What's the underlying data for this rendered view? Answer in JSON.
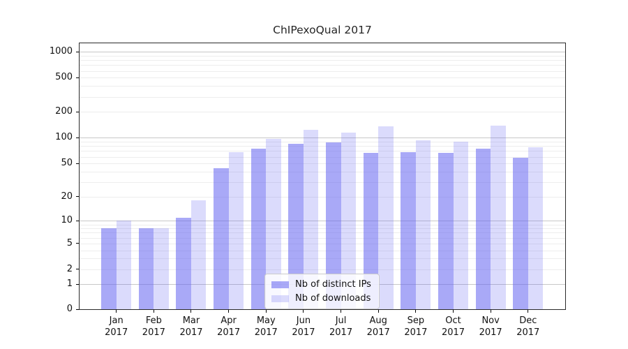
{
  "chart_data": {
    "type": "bar",
    "title": "ChIPexoQual 2017",
    "categories": [
      "Jan",
      "Feb",
      "Mar",
      "Apr",
      "May",
      "Jun",
      "Jul",
      "Aug",
      "Sep",
      "Oct",
      "Nov",
      "Dec"
    ],
    "year_label": "2017",
    "series": [
      {
        "name": "Nb of distinct IPs",
        "color": "rgba(98,98,240,0.55)",
        "solid_color": "#a8a8f5",
        "values": [
          8,
          8,
          11,
          44,
          74,
          85,
          88,
          67,
          68,
          67,
          74,
          58
        ]
      },
      {
        "name": "Nb of downloads",
        "color": "rgba(98,98,240,0.23)",
        "solid_color": "#dbdbf9",
        "values": [
          10,
          8,
          18,
          68,
          98,
          125,
          114,
          135,
          94,
          90,
          139,
          78
        ]
      }
    ],
    "yscale": "pseudo-log",
    "yticks": [
      0,
      1,
      2,
      5,
      10,
      20,
      50,
      100,
      200,
      500,
      1000
    ],
    "ylim": [
      0,
      1244
    ],
    "xlabel": "",
    "ylabel": "",
    "grid": true,
    "legend_position": "lower center"
  },
  "colors": {
    "major_grid": "#c8c8c8",
    "minor_grid": "#ededed",
    "axis": "#000000",
    "background": "#ffffff"
  }
}
